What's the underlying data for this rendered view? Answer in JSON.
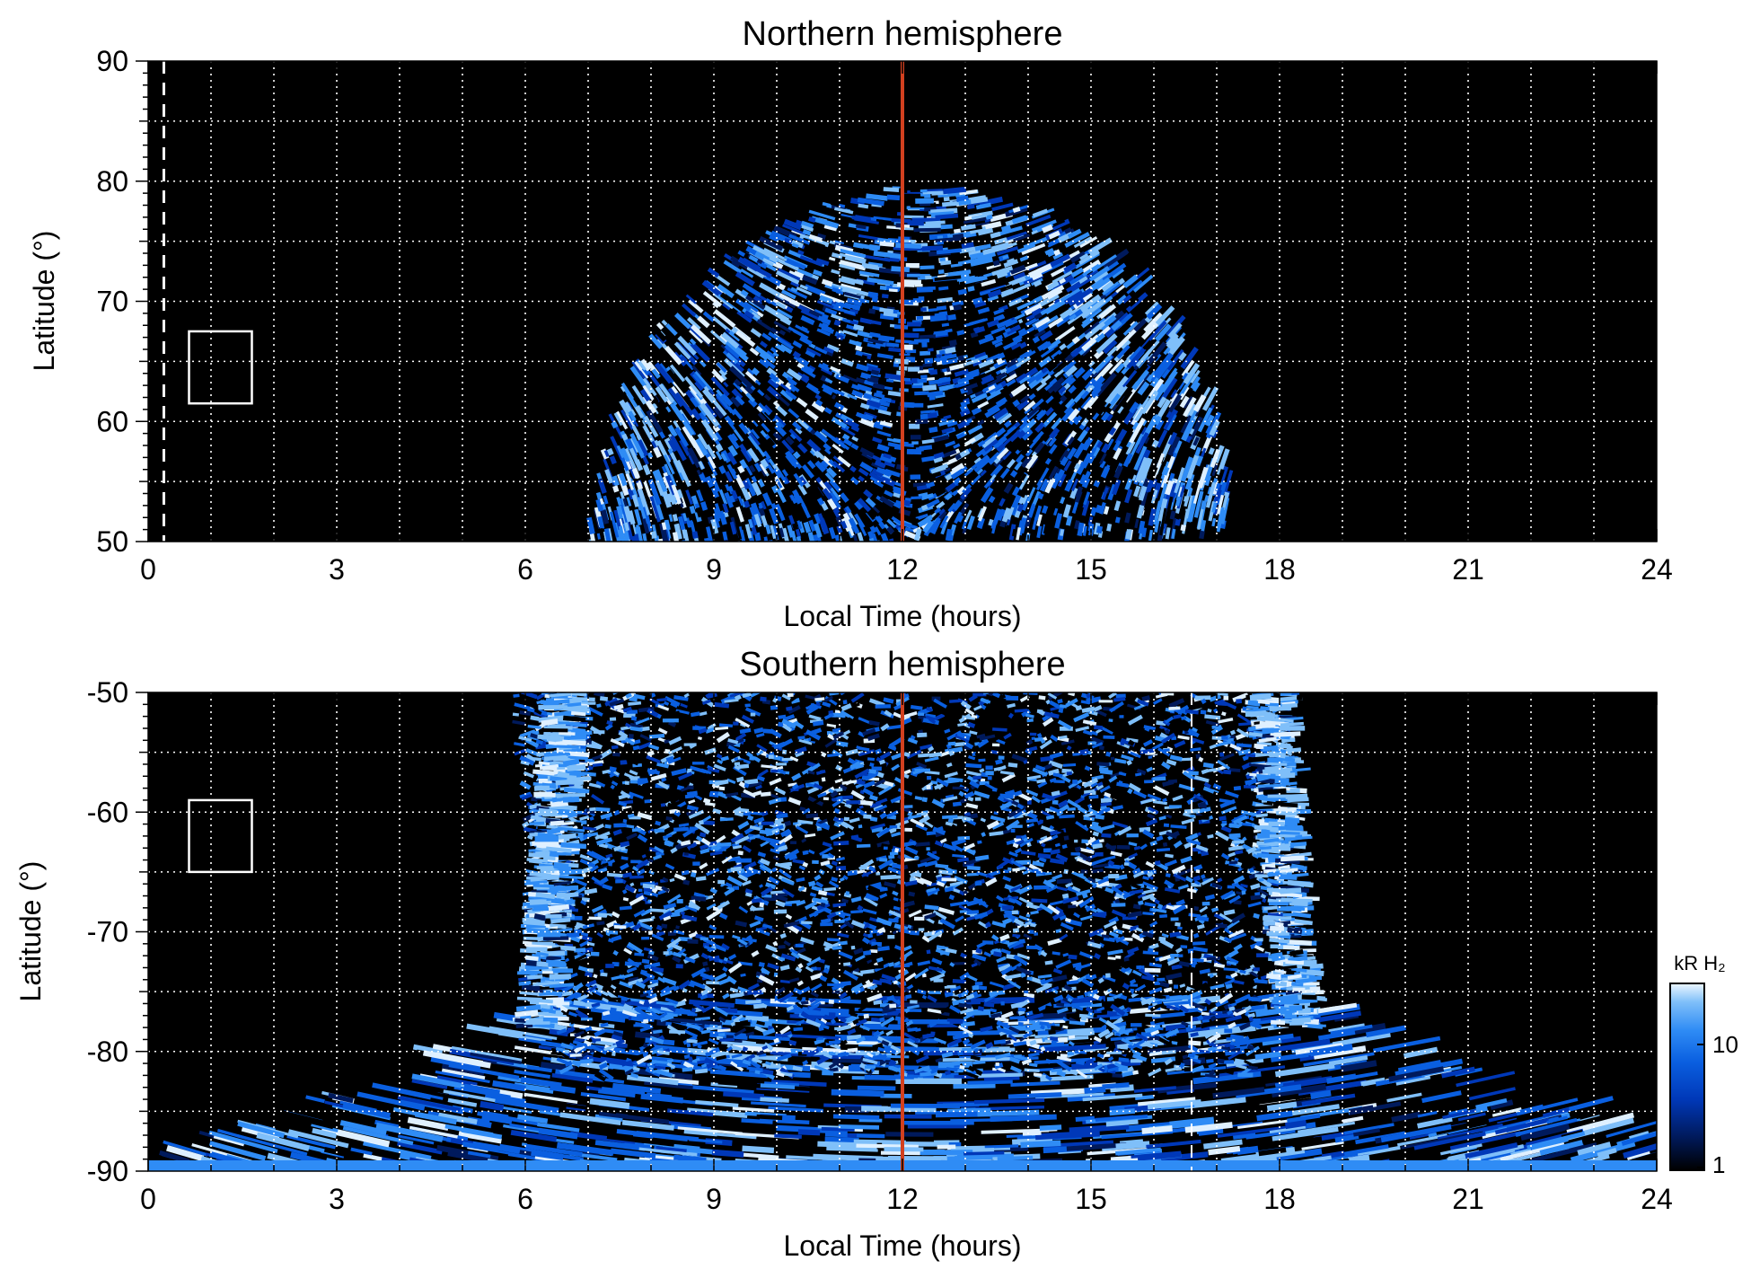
{
  "colors": {
    "background": "#000000",
    "noon_line": "#d2401f",
    "grid": "#ffffff",
    "colormap": [
      "#000000",
      "#001a5c",
      "#0038b8",
      "#0a5fe0",
      "#2f8cf5",
      "#7fbff9",
      "#dff0ff"
    ]
  },
  "colorbar": {
    "label": "kR H₂",
    "ticks": [
      "10",
      "1"
    ],
    "scale": "log"
  },
  "chart_data": [
    {
      "type": "heatmap",
      "title": "Northern hemisphere",
      "xlabel": "Local Time (hours)",
      "ylabel": "Latitude (°)",
      "xlim": [
        0,
        24
      ],
      "ylim": [
        50,
        90
      ],
      "x_ticks": [
        "0",
        "3",
        "6",
        "9",
        "12",
        "15",
        "18",
        "21",
        "24"
      ],
      "y_ticks": [
        "90",
        "80",
        "70",
        "60",
        "50"
      ],
      "grid": true,
      "noon_line_x": 12,
      "dashed_line_x": 0.25,
      "box": {
        "x": [
          0.65,
          1.65
        ],
        "y": [
          61.5,
          67.5
        ]
      },
      "emission_region": {
        "x_range": [
          7.0,
          17.2
        ],
        "max_latitude": 79.5,
        "min_latitude": 50
      }
    },
    {
      "type": "heatmap",
      "title": "Southern hemisphere",
      "xlabel": "Local Time (hours)",
      "ylabel": "Latitude (°)",
      "xlim": [
        0,
        24
      ],
      "ylim": [
        -90,
        -50
      ],
      "x_ticks": [
        "0",
        "3",
        "6",
        "9",
        "12",
        "15",
        "18",
        "21",
        "24"
      ],
      "y_ticks": [
        "-50",
        "-60",
        "-70",
        "-80",
        "-90"
      ],
      "grid": true,
      "noon_line_x": 12,
      "dashed_line_x": 16.6,
      "box": {
        "x": [
          0.65,
          1.65
        ],
        "y": [
          -65,
          -59
        ]
      },
      "emission_region": {
        "x_range": [
          6.3,
          19.0
        ],
        "edge_x_range": [
          0.0,
          24.0
        ],
        "min_abs_latitude": 50
      }
    }
  ]
}
